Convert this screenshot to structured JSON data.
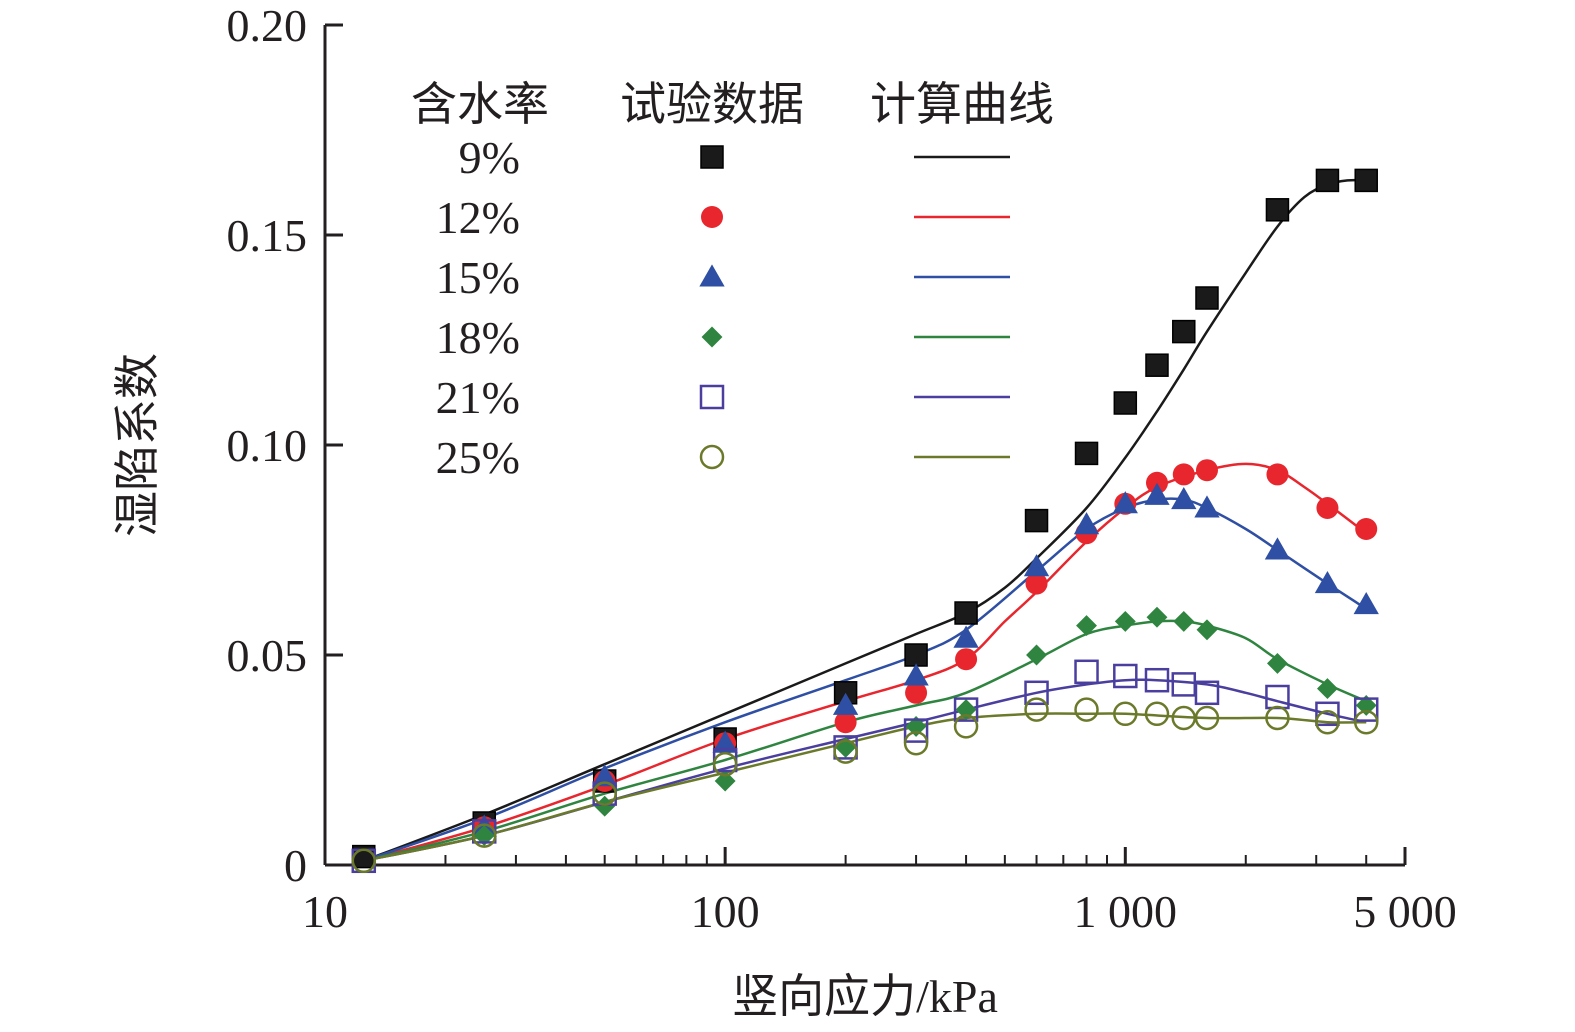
{
  "chart_data": {
    "type": "scatter",
    "xlabel": "竖向应力/kPa",
    "ylabel": "湿陷系数",
    "xscale": "log",
    "xlim": [
      10,
      5000
    ],
    "ylim": [
      0,
      0.2
    ],
    "x_ticks": [
      {
        "value": 10,
        "label": "10"
      },
      {
        "value": 100,
        "label": "100"
      },
      {
        "value": 1000,
        "label": "1 000"
      },
      {
        "value": 5000,
        "label": "5 000"
      }
    ],
    "y_ticks": [
      {
        "value": 0,
        "label": "0"
      },
      {
        "value": 0.05,
        "label": "0.05"
      },
      {
        "value": 0.1,
        "label": "0.10"
      },
      {
        "value": 0.15,
        "label": "0.15"
      },
      {
        "value": 0.2,
        "label": "0.20"
      }
    ],
    "grid": false,
    "legend": {
      "position": "top-left",
      "headers": [
        "含水率",
        "试验数据",
        "计算曲线"
      ]
    },
    "series": [
      {
        "name": "9%",
        "marker": "square-filled",
        "color": "#1a1a1a",
        "points": [
          [
            12.5,
            0.002
          ],
          [
            25,
            0.01
          ],
          [
            50,
            0.02
          ],
          [
            100,
            0.03
          ],
          [
            200,
            0.041
          ],
          [
            300,
            0.05
          ],
          [
            400,
            0.06
          ],
          [
            600,
            0.082
          ],
          [
            800,
            0.098
          ],
          [
            1000,
            0.11
          ],
          [
            1200,
            0.119
          ],
          [
            1400,
            0.127
          ],
          [
            1600,
            0.135
          ],
          [
            2400,
            0.156
          ],
          [
            3200,
            0.163
          ],
          [
            4000,
            0.163
          ]
        ],
        "curve": [
          [
            12.5,
            0.001
          ],
          [
            25,
            0.012
          ],
          [
            50,
            0.024
          ],
          [
            100,
            0.036
          ],
          [
            200,
            0.048
          ],
          [
            300,
            0.055
          ],
          [
            400,
            0.06
          ],
          [
            500,
            0.066
          ],
          [
            600,
            0.073
          ],
          [
            800,
            0.085
          ],
          [
            1000,
            0.097
          ],
          [
            1200,
            0.108
          ],
          [
            1400,
            0.118
          ],
          [
            1600,
            0.127
          ],
          [
            2000,
            0.141
          ],
          [
            2400,
            0.152
          ],
          [
            2800,
            0.159
          ],
          [
            3200,
            0.162
          ],
          [
            3600,
            0.163
          ],
          [
            4000,
            0.163
          ]
        ]
      },
      {
        "name": "12%",
        "marker": "circle-filled",
        "color": "#e8262d",
        "points": [
          [
            25,
            0.009
          ],
          [
            50,
            0.02
          ],
          [
            100,
            0.029
          ],
          [
            200,
            0.034
          ],
          [
            300,
            0.041
          ],
          [
            400,
            0.049
          ],
          [
            600,
            0.067
          ],
          [
            800,
            0.079
          ],
          [
            1000,
            0.086
          ],
          [
            1200,
            0.091
          ],
          [
            1400,
            0.093
          ],
          [
            1600,
            0.094
          ],
          [
            2400,
            0.093
          ],
          [
            3200,
            0.085
          ],
          [
            4000,
            0.08
          ]
        ],
        "curve": [
          [
            12.5,
            0.001
          ],
          [
            25,
            0.009
          ],
          [
            50,
            0.019
          ],
          [
            100,
            0.03
          ],
          [
            200,
            0.039
          ],
          [
            300,
            0.044
          ],
          [
            400,
            0.049
          ],
          [
            500,
            0.058
          ],
          [
            600,
            0.065
          ],
          [
            800,
            0.077
          ],
          [
            1000,
            0.085
          ],
          [
            1200,
            0.09
          ],
          [
            1600,
            0.094
          ],
          [
            2000,
            0.0955
          ],
          [
            2400,
            0.094
          ],
          [
            2800,
            0.09
          ],
          [
            3200,
            0.086
          ],
          [
            4000,
            0.079
          ]
        ]
      },
      {
        "name": "15%",
        "marker": "triangle-filled",
        "color": "#2e4fa3",
        "points": [
          [
            25,
            0.009
          ],
          [
            50,
            0.021
          ],
          [
            100,
            0.029
          ],
          [
            200,
            0.038
          ],
          [
            300,
            0.045
          ],
          [
            400,
            0.054
          ],
          [
            600,
            0.071
          ],
          [
            800,
            0.081
          ],
          [
            1000,
            0.086
          ],
          [
            1200,
            0.088
          ],
          [
            1400,
            0.087
          ],
          [
            1600,
            0.085
          ],
          [
            2400,
            0.075
          ],
          [
            3200,
            0.067
          ],
          [
            4000,
            0.062
          ]
        ],
        "curve": [
          [
            12.5,
            0.001
          ],
          [
            25,
            0.011
          ],
          [
            50,
            0.023
          ],
          [
            100,
            0.034
          ],
          [
            200,
            0.044
          ],
          [
            300,
            0.05
          ],
          [
            400,
            0.056
          ],
          [
            600,
            0.07
          ],
          [
            800,
            0.08
          ],
          [
            1000,
            0.085
          ],
          [
            1200,
            0.087
          ],
          [
            1400,
            0.087
          ],
          [
            1600,
            0.085
          ],
          [
            2000,
            0.08
          ],
          [
            2400,
            0.075
          ],
          [
            3200,
            0.067
          ],
          [
            4000,
            0.061
          ]
        ]
      },
      {
        "name": "18%",
        "marker": "diamond-filled",
        "color": "#2f8540",
        "points": [
          [
            25,
            0.007
          ],
          [
            50,
            0.014
          ],
          [
            100,
            0.02
          ],
          [
            200,
            0.028
          ],
          [
            300,
            0.033
          ],
          [
            400,
            0.037
          ],
          [
            600,
            0.05
          ],
          [
            800,
            0.057
          ],
          [
            1000,
            0.058
          ],
          [
            1200,
            0.059
          ],
          [
            1400,
            0.058
          ],
          [
            1600,
            0.056
          ],
          [
            2400,
            0.048
          ],
          [
            3200,
            0.042
          ],
          [
            4000,
            0.038
          ]
        ],
        "curve": [
          [
            12.5,
            0.001
          ],
          [
            25,
            0.008
          ],
          [
            50,
            0.017
          ],
          [
            100,
            0.025
          ],
          [
            200,
            0.034
          ],
          [
            300,
            0.038
          ],
          [
            400,
            0.041
          ],
          [
            600,
            0.049
          ],
          [
            800,
            0.055
          ],
          [
            1000,
            0.057
          ],
          [
            1200,
            0.058
          ],
          [
            1400,
            0.058
          ],
          [
            1600,
            0.057
          ],
          [
            2000,
            0.054
          ],
          [
            2400,
            0.049
          ],
          [
            3200,
            0.043
          ],
          [
            4000,
            0.039
          ]
        ]
      },
      {
        "name": "21%",
        "marker": "square-open",
        "color": "#4a3f9e",
        "points": [
          [
            12.5,
            0.001
          ],
          [
            25,
            0.008
          ],
          [
            50,
            0.017
          ],
          [
            100,
            0.025
          ],
          [
            200,
            0.028
          ],
          [
            300,
            0.032
          ],
          [
            400,
            0.037
          ],
          [
            600,
            0.041
          ],
          [
            800,
            0.046
          ],
          [
            1000,
            0.045
          ],
          [
            1200,
            0.044
          ],
          [
            1400,
            0.043
          ],
          [
            1600,
            0.041
          ],
          [
            2400,
            0.04
          ],
          [
            3200,
            0.036
          ],
          [
            4000,
            0.037
          ]
        ],
        "curve": [
          [
            12.5,
            0.001
          ],
          [
            25,
            0.007
          ],
          [
            50,
            0.015
          ],
          [
            100,
            0.023
          ],
          [
            200,
            0.03
          ],
          [
            300,
            0.034
          ],
          [
            400,
            0.037
          ],
          [
            600,
            0.041
          ],
          [
            800,
            0.043
          ],
          [
            1000,
            0.044
          ],
          [
            1200,
            0.044
          ],
          [
            1600,
            0.043
          ],
          [
            2000,
            0.041
          ],
          [
            2400,
            0.039
          ],
          [
            3200,
            0.036
          ],
          [
            4000,
            0.034
          ]
        ]
      },
      {
        "name": "25%",
        "marker": "circle-open",
        "color": "#6b7a2a",
        "points": [
          [
            12.5,
            0.001
          ],
          [
            25,
            0.007
          ],
          [
            50,
            0.017
          ],
          [
            100,
            0.024
          ],
          [
            200,
            0.027
          ],
          [
            300,
            0.029
          ],
          [
            400,
            0.033
          ],
          [
            600,
            0.037
          ],
          [
            800,
            0.037
          ],
          [
            1000,
            0.036
          ],
          [
            1200,
            0.036
          ],
          [
            1400,
            0.035
          ],
          [
            1600,
            0.035
          ],
          [
            2400,
            0.035
          ],
          [
            3200,
            0.034
          ],
          [
            4000,
            0.034
          ]
        ],
        "curve": [
          [
            12.5,
            0.001
          ],
          [
            25,
            0.007
          ],
          [
            50,
            0.015
          ],
          [
            100,
            0.022
          ],
          [
            200,
            0.029
          ],
          [
            300,
            0.033
          ],
          [
            400,
            0.035
          ],
          [
            600,
            0.036
          ],
          [
            800,
            0.036
          ],
          [
            1000,
            0.036
          ],
          [
            1600,
            0.035
          ],
          [
            2400,
            0.035
          ],
          [
            3200,
            0.034
          ],
          [
            4000,
            0.034
          ]
        ]
      }
    ]
  }
}
